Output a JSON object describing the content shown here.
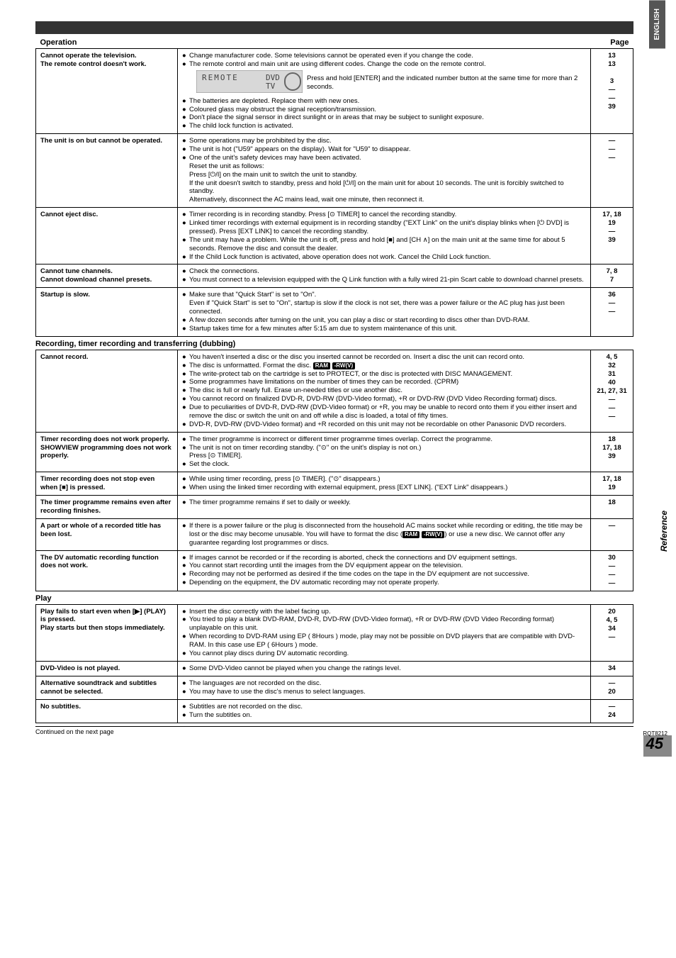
{
  "side": {
    "english": "ENGLISH",
    "reference": "Reference",
    "rqt": "RQT8212",
    "pagenum": "45"
  },
  "headers": {
    "operation": "Operation",
    "page": "Page",
    "play": "Play",
    "recording_section": "Recording, timer recording and transferring (dubbing)"
  },
  "continued": "Continued on the next page",
  "rows_op": [
    {
      "left": "Cannot operate the television.\nThe remote control doesn't work.",
      "mid_html": "bullets",
      "mid": [
        {
          "t": "Change manufacturer code. Some televisions cannot be operated even if you change the code.",
          "p": "13"
        },
        {
          "t": "The remote control and main unit are using different codes. Change the code on the remote control.",
          "p": "13"
        },
        {
          "t": "__REMOTE__",
          "p": ""
        },
        {
          "t": "The batteries are depleted. Replace them with new ones.",
          "p": "3"
        },
        {
          "t": "Coloured glass may obstruct the signal reception/transmission.",
          "p": "—"
        },
        {
          "t": "Don't place the signal sensor in direct sunlight or in areas that may be subject to sunlight exposure.",
          "p": "—"
        },
        {
          "t": "The child lock function is activated.",
          "p": "39"
        }
      ],
      "remote_caption": "Press and hold [ENTER] and the indicated number button at the same time for more than 2 seconds."
    },
    {
      "left": "The unit is on but cannot be operated.",
      "mid": [
        {
          "t": "Some operations may be prohibited by the disc.",
          "p": "—"
        },
        {
          "t": "The unit is hot (\"U59\" appears on the display). Wait for \"U59\" to disappear.",
          "p": "—"
        },
        {
          "t": "One of the unit's safety devices may have been activated.\nReset the unit as follows:\nPress [⏻/I] on the main unit to switch the unit to standby.\nIf the unit doesn't switch to standby, press and hold [⏻/I] on the main unit for about 10 seconds. The unit is forcibly switched to standby.\nAlternatively, disconnect the AC mains lead, wait one minute, then reconnect it.",
          "p": "—"
        }
      ]
    },
    {
      "left": "Cannot eject disc.",
      "mid": [
        {
          "t": "Timer recording is in recording standby. Press [⊙ TIMER] to cancel the recording standby.",
          "p": "17, 18"
        },
        {
          "t": "Linked timer recordings with external equipment is in recording standby (\"EXT Link\" on the unit's display blinks when [⏻ DVD] is pressed). Press [EXT LINK] to cancel the recording standby.",
          "p": "19"
        },
        {
          "t": "The unit may have a problem. While the unit is off, press and hold [■] and [CH ∧] on the main unit at the same time for about 5 seconds. Remove the disc and consult the dealer.",
          "p": "—"
        },
        {
          "t": "If the Child Lock function is activated, above operation does not work. Cancel the Child Lock function.",
          "p": "39"
        }
      ]
    },
    {
      "left": "Cannot tune channels.\nCannot download channel presets.",
      "mid": [
        {
          "t": "Check the connections.",
          "p": "7, 8"
        },
        {
          "t": "You must connect to a television equipped with the Q Link function with a fully wired 21-pin Scart cable to download channel presets.",
          "p": "7"
        }
      ]
    },
    {
      "left": "Startup is slow.",
      "mid": [
        {
          "t": "Make sure that \"Quick Start\" is set to \"On\".\nEven if \"Quick Start\" is set to \"On\", startup is slow if the clock is not set, there was a power failure or the AC plug has just been connected.",
          "p": "36"
        },
        {
          "t": "A few dozen seconds after turning on the unit, you can play a disc or start recording to discs other than DVD-RAM.",
          "p": "—"
        },
        {
          "t": "Startup takes time for a few minutes after 5:15 am due to system maintenance of this unit.",
          "p": "—"
        }
      ]
    }
  ],
  "rows_rec": [
    {
      "left": "Cannot record.",
      "mid": [
        {
          "t": "You haven't inserted a disc or the disc you inserted cannot be recorded on. Insert a disc the unit can record onto.",
          "p": "4, 5"
        },
        {
          "t": "The disc is unformatted. Format the disc. __RAM__ __RWV__",
          "p": "32"
        },
        {
          "t": "The write-protect tab on the cartridge is set to PROTECT, or the disc is protected with DISC MANAGEMENT.",
          "p": "31"
        },
        {
          "t": "Some programmes have limitations on the number of times they can be recorded. (CPRM)",
          "p": "40"
        },
        {
          "t": "The disc is full or nearly full. Erase un-needed titles or use another disc.",
          "p": "21, 27, 31"
        },
        {
          "t": "You cannot record on finalized DVD-R, DVD-RW (DVD-Video format), +R or DVD-RW (DVD Video Recording format) discs.",
          "p": "—"
        },
        {
          "t": "Due to peculiarities of DVD-R, DVD-RW (DVD-Video format) or +R, you may be unable to record onto them if you either insert and remove the disc or switch the unit on and off while a disc is loaded, a total of fifty times.",
          "p": "—"
        },
        {
          "t": "DVD-R, DVD-RW (DVD-Video format) and +R recorded on this unit may not be recordable on other Panasonic DVD recorders.",
          "p": "—"
        }
      ]
    },
    {
      "left": "Timer recording does not work properly.\nSHOWVIEW programming does not work properly.",
      "mid": [
        {
          "t": "The timer programme is incorrect or different timer programme times overlap. Correct the programme.",
          "p": "18"
        },
        {
          "t": "The unit is not on timer recording standby. (\"⊙\" on the unit's display is not on.)\nPress [⊙ TIMER].",
          "p": "17, 18"
        },
        {
          "t": "Set the clock.",
          "p": "39"
        }
      ]
    },
    {
      "left": "Timer recording does not stop even when [■] is pressed.",
      "mid": [
        {
          "t": "While using timer recording, press [⊙ TIMER]. (\"⊙\" disappears.)",
          "p": "17, 18"
        },
        {
          "t": "When using the linked timer recording with external equipment, press [EXT LINK]. (\"EXT Link\" disappears.)",
          "p": "19"
        }
      ]
    },
    {
      "left": "The timer programme remains even after recording finishes.",
      "mid": [
        {
          "t": "The timer programme remains if set to daily or weekly.",
          "p": "18"
        }
      ]
    },
    {
      "left": "A part or whole of a recorded title has been lost.",
      "mid": [
        {
          "t": "If there is a power failure or the plug is disconnected from the household AC mains socket while recording or editing, the title may be lost or the disc may become unusable. You will have to format the disc (__RAM__ __RWV__) or use a new disc. We cannot offer any guarantee regarding lost programmes or discs.",
          "p": "—"
        }
      ]
    },
    {
      "left": "The DV automatic recording function does not work.",
      "mid": [
        {
          "t": "If images cannot be recorded or if the recording is aborted, check the connections and DV equipment settings.",
          "p": "30"
        },
        {
          "t": "You cannot start recording until the images from the DV equipment appear on the television.",
          "p": "—"
        },
        {
          "t": "Recording may not be performed as desired if the time codes on the tape in the DV equipment are not successive.",
          "p": "—"
        },
        {
          "t": "Depending on the equipment, the DV automatic recording may not operate properly.",
          "p": "—"
        }
      ]
    }
  ],
  "rows_play": [
    {
      "left": "Play fails to start even when [▶] (PLAY) is pressed.\nPlay starts but then stops immediately.",
      "mid": [
        {
          "t": "Insert the disc correctly with the label facing up.",
          "p": "20"
        },
        {
          "t": "You tried to play a blank DVD-RAM, DVD-R, DVD-RW (DVD-Video format), +R or DVD-RW (DVD Video Recording format) unplayable on this unit.",
          "p": "4, 5"
        },
        {
          "t": "When recording to DVD-RAM using EP ( 8Hours ) mode, play may not be possible on DVD players that are compatible with DVD-RAM. In this case use EP ( 6Hours ) mode.",
          "p": "34"
        },
        {
          "t": "You cannot play discs during DV automatic recording.",
          "p": "—"
        }
      ]
    },
    {
      "left": "DVD-Video is not played.",
      "mid": [
        {
          "t": "Some DVD-Video cannot be played when you change the ratings level.",
          "p": "34"
        }
      ]
    },
    {
      "left": "Alternative soundtrack and subtitles cannot be selected.",
      "mid": [
        {
          "t": "The languages are not recorded on the disc.",
          "p": "—"
        },
        {
          "t": "You may have to use the disc's menus to select languages.",
          "p": "20"
        }
      ]
    },
    {
      "left": "No subtitles.",
      "mid": [
        {
          "t": "Subtitles are not recorded on the disc.",
          "p": "—"
        },
        {
          "t": "Turn the subtitles on.",
          "p": "24"
        }
      ]
    }
  ]
}
